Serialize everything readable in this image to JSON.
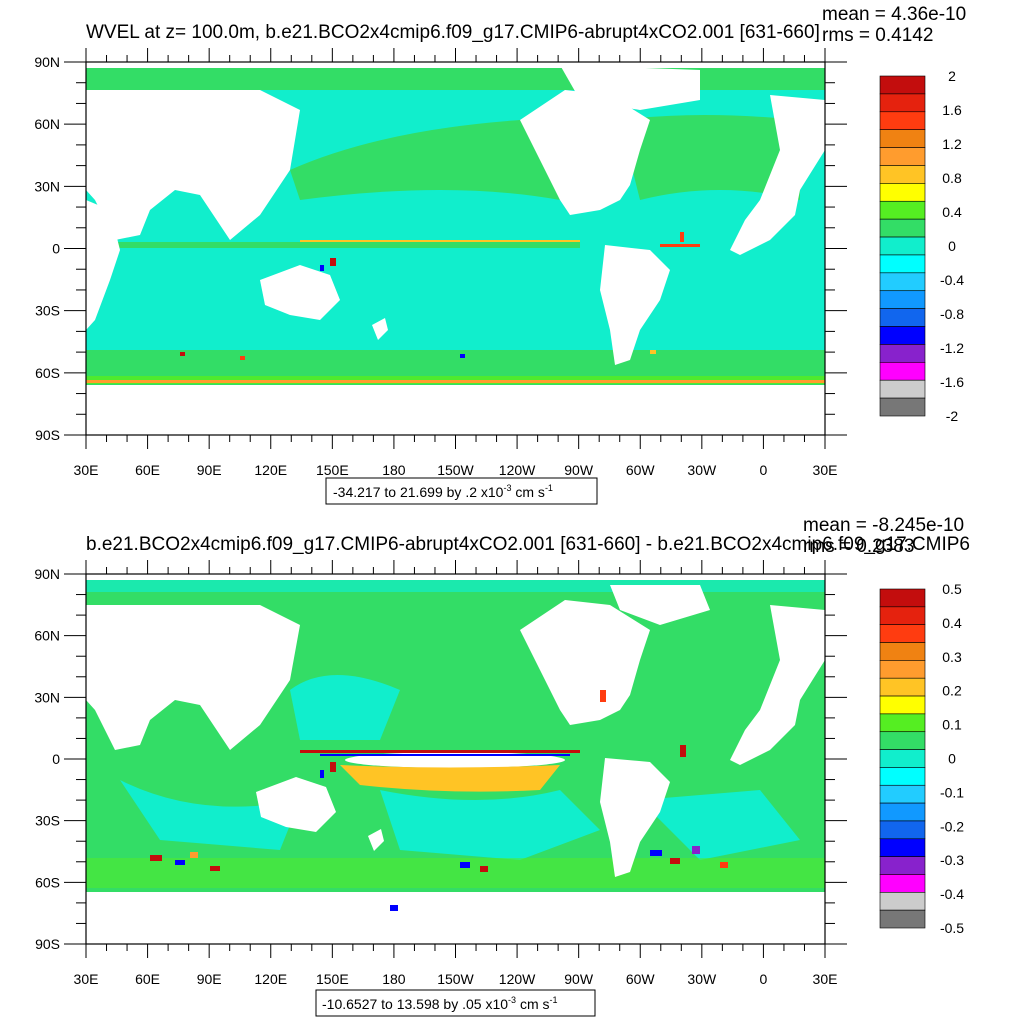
{
  "panels": [
    {
      "title": "WVEL at z= 100.0m, b.e21.BCO2x4cmip6.f09_g17.CMIP6-abrupt4xCO2.001 [631-660]",
      "mean_text": "mean = 4.36e-10",
      "rms_text": "rms = 0.4142",
      "range_text": "-34.217 to 21.699 by .2 x10",
      "range_exp": "-3",
      "range_unit": " cm s",
      "range_unit_exp": "-1",
      "lat_labels": [
        "90N",
        "60N",
        "30N",
        "0",
        "30S",
        "60S",
        "90S"
      ],
      "lon_labels": [
        "30E",
        "60E",
        "90E",
        "120E",
        "150E",
        "180",
        "150W",
        "120W",
        "90W",
        "60W",
        "30W",
        "0",
        "30E"
      ],
      "colorbar_labels": [
        "2",
        "1.6",
        "1.2",
        "0.8",
        "0.4",
        "0",
        "-0.4",
        "-0.8",
        "-1.2",
        "-1.6",
        "-2"
      ],
      "colorbar_colors": [
        "#c30d0d",
        "#e5220e",
        "#ff3c10",
        "#f08212",
        "#ff9c2e",
        "#ffc425",
        "#ffff00",
        "#55ee22",
        "#33dd66",
        "#11eecc",
        "#00ffff",
        "#22ccff",
        "#1199ff",
        "#1166ee",
        "#0000ff",
        "#8822cc",
        "#ff00ff",
        "#cccccc",
        "#777777"
      ],
      "base_field": "#11eecc"
    },
    {
      "title": "b.e21.BCO2x4cmip6.f09_g17.CMIP6-abrupt4xCO2.001 [631-660] - b.e21.BCO2x4cmip6.f09_g17.CMIP6",
      "mean_text": "mean = -8.245e-10",
      "rms_text": "rms = 0.2383",
      "range_text": "-10.6527 to 13.598 by .05 x10",
      "range_exp": "-3",
      "range_unit": " cm s",
      "range_unit_exp": "-1",
      "lat_labels": [
        "90N",
        "60N",
        "30N",
        "0",
        "30S",
        "60S",
        "90S"
      ],
      "lon_labels": [
        "30E",
        "60E",
        "90E",
        "120E",
        "150E",
        "180",
        "150W",
        "120W",
        "90W",
        "60W",
        "30W",
        "0",
        "30E"
      ],
      "colorbar_labels": [
        "0.5",
        "0.4",
        "0.3",
        "0.2",
        "0.1",
        "0",
        "-0.1",
        "-0.2",
        "-0.3",
        "-0.4",
        "-0.5"
      ],
      "colorbar_colors": [
        "#c30d0d",
        "#e5220e",
        "#ff3c10",
        "#f08212",
        "#ff9c2e",
        "#ffc425",
        "#ffff00",
        "#55ee22",
        "#33dd66",
        "#11eecc",
        "#00ffff",
        "#22ccff",
        "#1199ff",
        "#1166ee",
        "#0000ff",
        "#8822cc",
        "#ff00ff",
        "#cccccc",
        "#777777"
      ],
      "base_field": "#33dd66"
    }
  ]
}
